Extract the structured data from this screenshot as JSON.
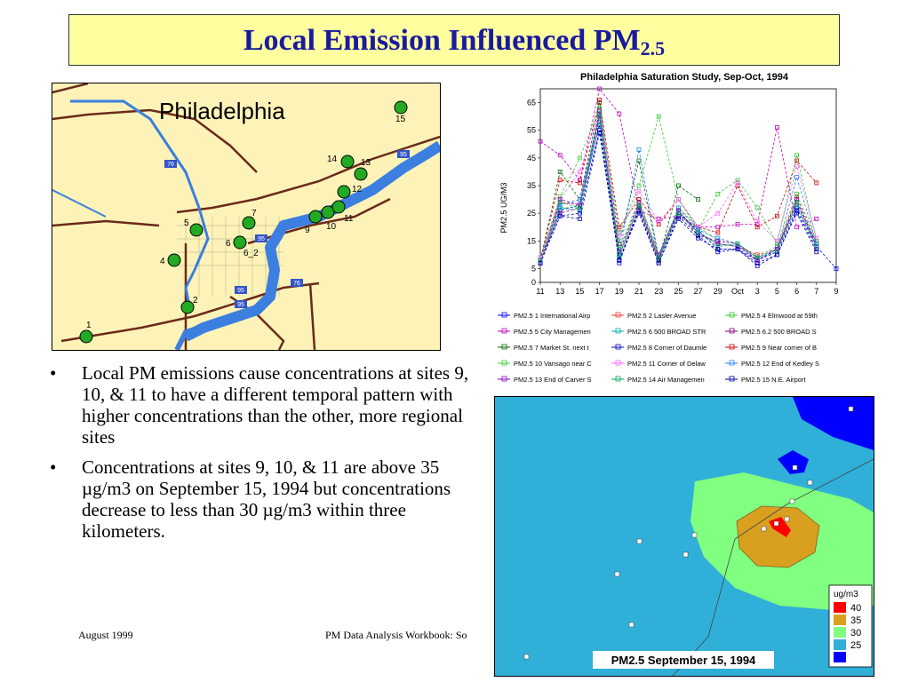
{
  "slide": {
    "title_main": "Local Emission Influenced PM",
    "title_sub": "2.5",
    "bullets": [
      "Local PM emissions cause concentrations at sites 9, 10, & 11 to have a different temporal pattern with higher concentrations than the other, more regional sites",
      "Concentrations at sites 9, 10, & 11 are above 35 µg/m3 on September 15, 1994 but concentrations decrease to less than 30 µg/m3 within three kilometers."
    ],
    "footer_left": "August 1999",
    "footer_center": "PM Data Analysis Workbook: So"
  },
  "map": {
    "title": "Philadelphia",
    "sites": [
      "1",
      "2",
      "4",
      "5",
      "6",
      "6_2",
      "7",
      "9",
      "10",
      "11",
      "12",
      "13",
      "14",
      "15"
    ],
    "highway_labels": [
      "76",
      "95",
      "95",
      "76",
      "95",
      "95"
    ],
    "colors": {
      "land": "#fdf3b8",
      "water": "#3c7fe0",
      "site": "#22aa22",
      "road": "#6b2a1a"
    }
  },
  "chart_data": {
    "type": "line",
    "title": "Philadelphia Saturation Study, Sep-Oct, 1994",
    "ylabel": "PM2.5 UG/M3",
    "ylim": [
      0,
      70
    ],
    "yticks": [
      0,
      5,
      15,
      25,
      35,
      45,
      55,
      65
    ],
    "x": [
      "11",
      "13",
      "15",
      "17",
      "19",
      "21",
      "23",
      "25",
      "27",
      "29",
      "Oct",
      "3",
      "5",
      "6",
      "7",
      "9"
    ],
    "series": [
      {
        "name": "PM2.5 1 International Airp",
        "color": "#0000ff",
        "values": [
          7,
          26,
          28,
          57,
          7,
          27,
          8,
          25,
          19,
          12,
          12,
          8,
          11,
          27,
          13,
          5
        ]
      },
      {
        "name": "PM2.5 2 Lasler Avenue",
        "color": "#ff3030",
        "values": [
          7,
          29,
          28,
          60,
          10,
          28,
          9,
          26,
          18,
          14,
          13,
          10,
          12,
          31,
          14,
          null
        ]
      },
      {
        "name": "PM2.5 4 Elmwood at 59th",
        "color": "#30cc30",
        "values": [
          8,
          27,
          27,
          61,
          12,
          30,
          10,
          27,
          20,
          15,
          14,
          9,
          13,
          32,
          15,
          null
        ]
      },
      {
        "name": "PM2.5 5 City Managemen",
        "color": "#c000c0",
        "values": [
          51,
          46,
          37,
          70,
          61,
          26,
          23,
          24,
          20,
          20,
          21,
          21,
          56,
          20,
          23,
          null
        ]
      },
      {
        "name": "PM2.5 6 500 BROAD STR",
        "color": "#00aaaa",
        "values": [
          7,
          27,
          26,
          58,
          9,
          28,
          8,
          25,
          18,
          14,
          13,
          9,
          12,
          28,
          13,
          null
        ]
      },
      {
        "name": "PM2.5 6.2 500 BROAD S",
        "color": "#800080",
        "values": [
          8,
          25,
          27,
          60,
          8,
          27,
          8,
          26,
          17,
          15,
          14,
          8,
          12,
          29,
          14,
          null
        ]
      },
      {
        "name": "PM2.5 7 Market St. next t",
        "color": "#006600",
        "values": [
          8,
          40,
          30,
          65,
          14,
          44,
          8,
          35,
          30,
          null,
          null,
          null,
          null,
          null,
          null,
          null
        ]
      },
      {
        "name": "PM2.5 8 Corner of Daumle",
        "color": "#0000cc",
        "values": [
          7,
          24,
          25,
          55,
          8,
          26,
          7,
          24,
          17,
          11,
          12,
          7,
          10,
          26,
          12,
          null
        ]
      },
      {
        "name": "PM2.5 9 Near corner of B",
        "color": "#cc0000",
        "values": [
          8,
          37,
          36,
          66,
          20,
          30,
          21,
          30,
          20,
          18,
          35,
          20,
          24,
          44,
          36,
          null
        ]
      },
      {
        "name": "PM2.5 10 Vansago near C",
        "color": "#33cc33",
        "values": [
          9,
          31,
          45,
          63,
          18,
          35,
          60,
          30,
          19,
          32,
          37,
          27,
          14,
          46,
          15,
          null
        ]
      },
      {
        "name": "PM2.5 11 Corner of Delaw",
        "color": "#ff66ff",
        "values": [
          9,
          30,
          40,
          62,
          17,
          33,
          22,
          30,
          20,
          25,
          36,
          22,
          15,
          42,
          16,
          null
        ]
      },
      {
        "name": "PM2.5 12 End of Kedley S",
        "color": "#2080ff",
        "values": [
          8,
          28,
          30,
          61,
          10,
          48,
          9,
          27,
          19,
          16,
          14,
          9,
          12,
          38,
          14,
          null
        ]
      },
      {
        "name": "PM2.5 13 End of Carver S",
        "color": "#8800cc",
        "values": [
          8,
          30,
          28,
          62,
          11,
          29,
          10,
          26,
          18,
          14,
          13,
          8,
          12,
          30,
          13,
          null
        ]
      },
      {
        "name": "PM2.5 14 Air Managemen",
        "color": "#00aa55",
        "values": [
          8,
          29,
          27,
          61,
          10,
          28,
          9,
          25,
          18,
          13,
          14,
          9,
          11,
          29,
          13,
          null
        ]
      },
      {
        "name": "PM2.5 15 N.E. Airport",
        "color": "#0000aa",
        "values": [
          7,
          24,
          23,
          54,
          8,
          25,
          7,
          23,
          16,
          12,
          12,
          6,
          10,
          25,
          11,
          null
        ]
      }
    ]
  },
  "contour": {
    "caption": "PM2.5 September 15, 1994",
    "legend_title": "ug/m3",
    "legend": [
      {
        "label": "40",
        "color": "#ff0000"
      },
      {
        "label": "35",
        "color": "#d9a020"
      },
      {
        "label": "30",
        "color": "#80ff80"
      },
      {
        "label": "25",
        "color": "#30b0d8"
      },
      {
        "label": "",
        "color": "#0000ff"
      }
    ],
    "legend_labels": [
      "40",
      "35",
      "30",
      "25"
    ]
  }
}
